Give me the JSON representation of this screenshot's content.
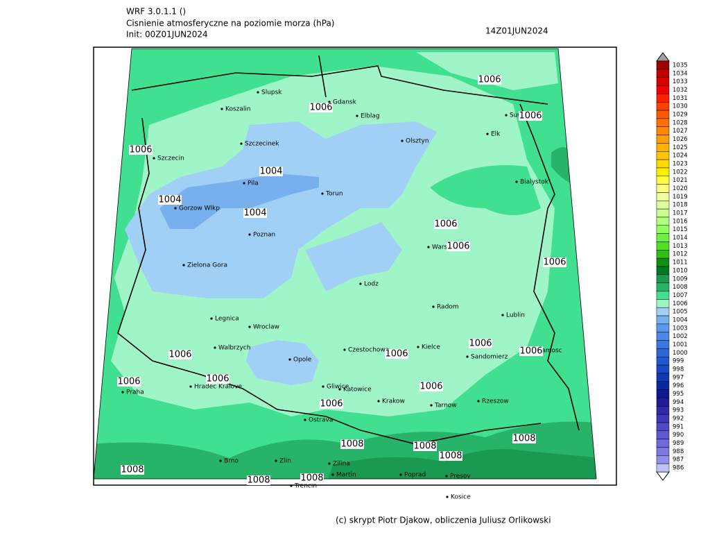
{
  "header": {
    "model": "WRF 3.0.1.1 ()",
    "field": "Cisnienie atmosferyczne na poziomie morza (hPa)",
    "init": "Init: 00Z01JUN2024",
    "valid": "14Z01JUN2024"
  },
  "cities": [
    "Slupsk",
    "Koszalin",
    "Gdansk",
    "Elblag",
    "Szczecinek",
    "Olsztyn",
    "Szczecin",
    "Suwalki",
    "Elk",
    "Bialystok",
    "Pila",
    "Torun",
    "Gorzow Wlkp",
    "Poznan",
    "Warszawa",
    "Zielona Gora",
    "Lodz",
    "Radom",
    "Lublin",
    "Legnica",
    "Wroclaw",
    "Walbrzych",
    "Opole",
    "Czestochowa",
    "Kielce",
    "Sandomierz",
    "Zamosc",
    "Hradec Kralove",
    "Praha",
    "Gliwice",
    "Katowice",
    "Krakow",
    "Tarnow",
    "Rzeszow",
    "Ostrava",
    "Brno",
    "Zlin",
    "Zilina",
    "Martin",
    "Poprad",
    "Presov",
    "Trencin",
    "Kosice"
  ],
  "contour_labels": [
    "1006",
    "1006",
    "1006",
    "1006",
    "1006",
    "1006",
    "1006",
    "1006",
    "1006",
    "1006",
    "1006",
    "1006",
    "1006",
    "1006",
    "1006",
    "1004",
    "1004",
    "1004",
    "1008",
    "1008",
    "1008",
    "1008",
    "1008",
    "1008",
    "1008"
  ],
  "colorbar": {
    "labels": [
      1035,
      1034,
      1033,
      1032,
      1031,
      1030,
      1029,
      1028,
      1027,
      1026,
      1025,
      1024,
      1023,
      1022,
      1021,
      1020,
      1019,
      1018,
      1017,
      1016,
      1015,
      1014,
      1013,
      1012,
      1011,
      1010,
      1009,
      1008,
      1007,
      1006,
      1005,
      1004,
      1003,
      1002,
      1001,
      1000,
      999,
      998,
      997,
      996,
      995,
      994,
      993,
      992,
      991,
      990,
      989,
      988,
      987,
      986
    ],
    "colors": [
      "#a00000",
      "#c00000",
      "#d80000",
      "#f00000",
      "#ff2000",
      "#ff4000",
      "#ff5a00",
      "#ff7000",
      "#ff8800",
      "#ffa000",
      "#ffb400",
      "#ffc800",
      "#ffdc00",
      "#fff000",
      "#ffff40",
      "#ffff80",
      "#f0ffa0",
      "#e0ffa0",
      "#c8ff90",
      "#b0ff80",
      "#90ff60",
      "#70f040",
      "#50e020",
      "#30c010",
      "#109010",
      "#007a20",
      "#1a9a50",
      "#28b468",
      "#40e090",
      "#a0f5c8",
      "#a0d0f5",
      "#78b0ee",
      "#5a98ea",
      "#4a88e4",
      "#3a78de",
      "#2c68d8",
      "#2058d0",
      "#1848c4",
      "#1038b4",
      "#0828a0",
      "#101890",
      "#201c98",
      "#302aa8",
      "#4038b8",
      "#5048c4",
      "#6058d0",
      "#7068dc",
      "#8078e4",
      "#9090ec",
      "#c0c0f8"
    ]
  },
  "footer": "(c) skrypt Piotr Djakow, obliczenia Juliusz Orlikowski"
}
